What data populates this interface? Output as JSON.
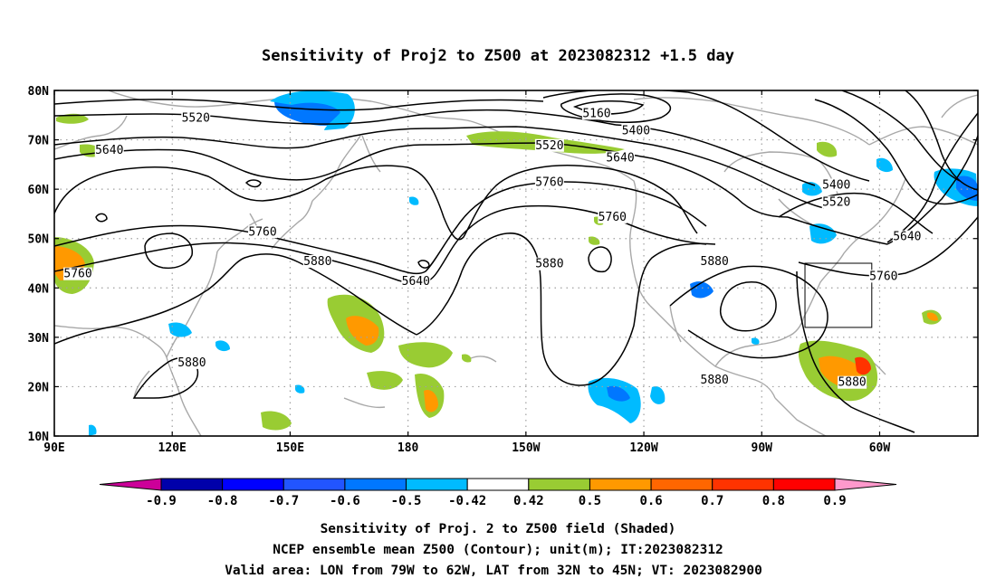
{
  "title": "Sensitivity of Proj2 to Z500 at 2023082312 +1.5 day",
  "map": {
    "lon_range": [
      90,
      325
    ],
    "lat_range": [
      10,
      80
    ],
    "lat_labels": [
      {
        "lat": 80,
        "text": "80N"
      },
      {
        "lat": 70,
        "text": "70N"
      },
      {
        "lat": 60,
        "text": "60N"
      },
      {
        "lat": 50,
        "text": "50N"
      },
      {
        "lat": 40,
        "text": "40N"
      },
      {
        "lat": 30,
        "text": "30N"
      },
      {
        "lat": 20,
        "text": "20N"
      },
      {
        "lat": 10,
        "text": "10N"
      }
    ],
    "lon_labels": [
      {
        "lon": 90,
        "text": "90E"
      },
      {
        "lon": 120,
        "text": "120E"
      },
      {
        "lon": 150,
        "text": "150E"
      },
      {
        "lon": 180,
        "text": "180"
      },
      {
        "lon": 210,
        "text": "150W"
      },
      {
        "lon": 240,
        "text": "120W"
      },
      {
        "lon": 270,
        "text": "90W"
      },
      {
        "lon": 300,
        "text": "60W"
      }
    ],
    "valid_box": {
      "lon": [
        281,
        298
      ],
      "lat": [
        32,
        45
      ]
    },
    "contour_color": "#000000",
    "coast_color": "#a8a8a8",
    "grid_color": "#a0a0a0"
  },
  "contour_labels": [
    {
      "text": "5520",
      "lon": 126,
      "lat": 74
    },
    {
      "text": "5640",
      "lon": 104,
      "lat": 67.5
    },
    {
      "text": "5760",
      "lon": 143,
      "lat": 51
    },
    {
      "text": "5880",
      "lon": 157,
      "lat": 45
    },
    {
      "text": "5760",
      "lon": 96,
      "lat": 42.5
    },
    {
      "text": "5880",
      "lon": 125,
      "lat": 24.5
    },
    {
      "text": "5640",
      "lon": 182,
      "lat": 41
    },
    {
      "text": "5880",
      "lon": 216,
      "lat": 44.5
    },
    {
      "text": "5520",
      "lon": 216,
      "lat": 68.5
    },
    {
      "text": "5160",
      "lon": 228,
      "lat": 75
    },
    {
      "text": "5400",
      "lon": 238,
      "lat": 71.5
    },
    {
      "text": "5640",
      "lon": 234,
      "lat": 66
    },
    {
      "text": "5760",
      "lon": 216,
      "lat": 61
    },
    {
      "text": "5760",
      "lon": 232,
      "lat": 54
    },
    {
      "text": "5880",
      "lon": 258,
      "lat": 45
    },
    {
      "text": "5880",
      "lon": 258,
      "lat": 21
    },
    {
      "text": "5400",
      "lon": 289,
      "lat": 60.5
    },
    {
      "text": "5520",
      "lon": 289,
      "lat": 57
    },
    {
      "text": "5640",
      "lon": 307,
      "lat": 50
    },
    {
      "text": "5760",
      "lon": 301,
      "lat": 42
    },
    {
      "text": "5880",
      "lon": 293,
      "lat": 20.5
    }
  ],
  "colorbar": {
    "labels": [
      "-0.9",
      "-0.8",
      "-0.7",
      "-0.6",
      "-0.5",
      "-0.42",
      "0.42",
      "0.5",
      "0.6",
      "0.7",
      "0.8",
      "0.9"
    ],
    "colors": [
      "#cc0099",
      "#0000aa",
      "#0000ff",
      "#2255ff",
      "#0077ff",
      "#00bbff",
      "#ffffff",
      "#99cc33",
      "#ff9900",
      "#ff6600",
      "#ff3300",
      "#ff0000",
      "#ff99cc"
    ]
  },
  "caption": {
    "line1": "Sensitivity of Proj. 2 to Z500 field (Shaded)",
    "line2": "NCEP ensemble mean Z500 (Contour); unit(m); IT:2023082312",
    "line3": "Valid area: LON from 79W to 62W, LAT from 32N to 45N; VT: 2023082900"
  }
}
